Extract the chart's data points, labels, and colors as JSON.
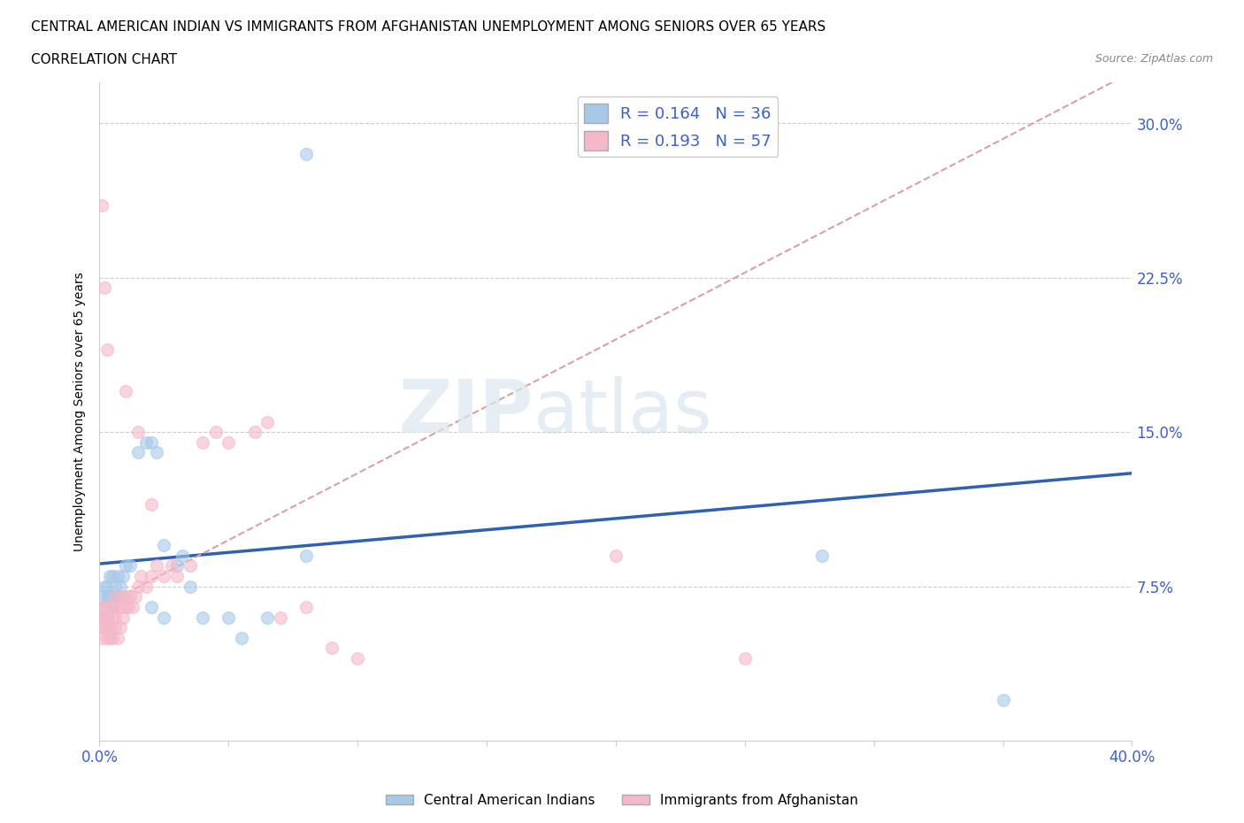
{
  "title_line1": "CENTRAL AMERICAN INDIAN VS IMMIGRANTS FROM AFGHANISTAN UNEMPLOYMENT AMONG SENIORS OVER 65 YEARS",
  "title_line2": "CORRELATION CHART",
  "source_text": "Source: ZipAtlas.com",
  "ylabel": "Unemployment Among Seniors over 65 years",
  "xlim": [
    0,
    0.4
  ],
  "ylim": [
    0,
    0.32
  ],
  "xticks": [
    0.0,
    0.05,
    0.1,
    0.15,
    0.2,
    0.25,
    0.3,
    0.35,
    0.4
  ],
  "yticks": [
    0.0,
    0.075,
    0.15,
    0.225,
    0.3
  ],
  "blue_R": 0.164,
  "blue_N": 36,
  "pink_R": 0.193,
  "pink_N": 57,
  "blue_color": "#a8c8e8",
  "pink_color": "#f4b8c8",
  "blue_line_color": "#3060b0",
  "pink_line_color": "#d06070",
  "pink_dash_color": "#d8a0a8",
  "label_color": "#4060c0",
  "blue_x": [
    0.001,
    0.001,
    0.002,
    0.002,
    0.003,
    0.003,
    0.004,
    0.004,
    0.005,
    0.005,
    0.006,
    0.006,
    0.007,
    0.007,
    0.008,
    0.009,
    0.01,
    0.012,
    0.015,
    0.018,
    0.02,
    0.022,
    0.025,
    0.03,
    0.032,
    0.035,
    0.04,
    0.05,
    0.055,
    0.065,
    0.08,
    0.28,
    0.35,
    0.08,
    0.025,
    0.02
  ],
  "blue_y": [
    0.06,
    0.07,
    0.065,
    0.075,
    0.07,
    0.075,
    0.07,
    0.08,
    0.065,
    0.08,
    0.07,
    0.075,
    0.07,
    0.08,
    0.075,
    0.08,
    0.085,
    0.085,
    0.14,
    0.145,
    0.145,
    0.14,
    0.095,
    0.085,
    0.09,
    0.075,
    0.06,
    0.06,
    0.05,
    0.06,
    0.09,
    0.09,
    0.02,
    0.285,
    0.06,
    0.065
  ],
  "pink_x": [
    0.001,
    0.001,
    0.001,
    0.001,
    0.002,
    0.002,
    0.002,
    0.003,
    0.003,
    0.003,
    0.004,
    0.004,
    0.004,
    0.005,
    0.005,
    0.005,
    0.006,
    0.006,
    0.006,
    0.007,
    0.007,
    0.008,
    0.008,
    0.009,
    0.009,
    0.01,
    0.01,
    0.011,
    0.012,
    0.013,
    0.014,
    0.015,
    0.016,
    0.018,
    0.02,
    0.022,
    0.025,
    0.028,
    0.03,
    0.035,
    0.04,
    0.045,
    0.05,
    0.06,
    0.065,
    0.07,
    0.08,
    0.09,
    0.1,
    0.2,
    0.25,
    0.001,
    0.002,
    0.003,
    0.01,
    0.015,
    0.02
  ],
  "pink_y": [
    0.05,
    0.055,
    0.06,
    0.065,
    0.055,
    0.06,
    0.065,
    0.05,
    0.055,
    0.06,
    0.05,
    0.055,
    0.065,
    0.05,
    0.06,
    0.065,
    0.055,
    0.06,
    0.07,
    0.05,
    0.065,
    0.055,
    0.065,
    0.06,
    0.07,
    0.065,
    0.07,
    0.065,
    0.07,
    0.065,
    0.07,
    0.075,
    0.08,
    0.075,
    0.08,
    0.085,
    0.08,
    0.085,
    0.08,
    0.085,
    0.145,
    0.15,
    0.145,
    0.15,
    0.155,
    0.06,
    0.065,
    0.045,
    0.04,
    0.09,
    0.04,
    0.26,
    0.22,
    0.19,
    0.17,
    0.15,
    0.115
  ]
}
